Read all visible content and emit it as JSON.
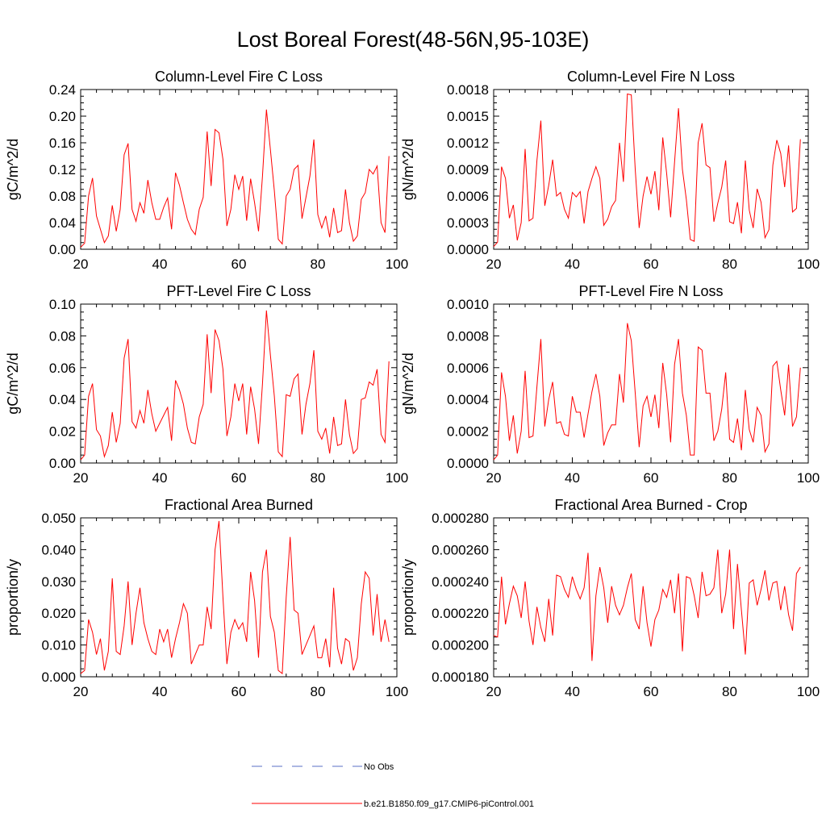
{
  "title": "Lost Boreal Forest(48-56N,95-103E)",
  "legend": {
    "items": [
      {
        "label": "No Obs",
        "style": "dashed",
        "color": "#5a6fc4"
      },
      {
        "label": "b.e21.B1850.f09_g17.CMIP6-piControl.001",
        "style": "solid",
        "color": "#ff0000"
      }
    ]
  },
  "chart_data": [
    {
      "type": "line",
      "title": "Column-Level Fire C Loss",
      "xlabel": "",
      "ylabel": "gC/m^2/d",
      "xlim": [
        20,
        100
      ],
      "ylim": [
        0,
        0.24
      ],
      "xticks": [
        "20",
        "40",
        "60",
        "80",
        "100"
      ],
      "yticks": [
        "0.00",
        "0.04",
        "0.08",
        "0.12",
        "0.16",
        "0.20",
        "0.24"
      ],
      "x_start": 20,
      "series": [
        {
          "name": "b.e21.B1850.f09_g17.CMIP6-piControl.001",
          "color": "#ff0000",
          "values": [
            0.003,
            0.009,
            0.08,
            0.107,
            0.05,
            0.03,
            0.01,
            0.02,
            0.066,
            0.027,
            0.06,
            0.142,
            0.159,
            0.06,
            0.042,
            0.07,
            0.054,
            0.104,
            0.07,
            0.045,
            0.045,
            0.063,
            0.077,
            0.03,
            0.115,
            0.096,
            0.07,
            0.045,
            0.03,
            0.022,
            0.06,
            0.078,
            0.177,
            0.095,
            0.18,
            0.175,
            0.135,
            0.035,
            0.06,
            0.112,
            0.09,
            0.11,
            0.043,
            0.106,
            0.07,
            0.027,
            0.11,
            0.21,
            0.15,
            0.088,
            0.015,
            0.008,
            0.08,
            0.09,
            0.12,
            0.126,
            0.046,
            0.078,
            0.11,
            0.165,
            0.052,
            0.032,
            0.05,
            0.018,
            0.062,
            0.025,
            0.028,
            0.09,
            0.04,
            0.012,
            0.02,
            0.075,
            0.085,
            0.12,
            0.113,
            0.125,
            0.04,
            0.025,
            0.14
          ]
        }
      ]
    },
    {
      "type": "line",
      "title": "Column-Level Fire N Loss",
      "xlabel": "",
      "ylabel": "gN/m^2/d",
      "xlim": [
        20,
        100
      ],
      "ylim": [
        0,
        0.0018
      ],
      "xticks": [
        "20",
        "40",
        "60",
        "80",
        "100"
      ],
      "yticks": [
        "0.0000",
        "0.0003",
        "0.0006",
        "0.0009",
        "0.0012",
        "0.0015",
        "0.0018"
      ],
      "x_start": 20,
      "series": [
        {
          "name": "b.e21.B1850.f09_g17.CMIP6-piControl.001",
          "color": "#ff0000",
          "values": [
            3e-05,
            8e-05,
            0.00093,
            0.0008,
            0.00035,
            0.0005,
            0.0001,
            0.0003,
            0.00113,
            0.00032,
            0.00035,
            0.001,
            0.00145,
            0.00049,
            0.00072,
            0.00101,
            0.0006,
            0.00064,
            0.00045,
            0.00035,
            0.00064,
            0.00059,
            0.00065,
            0.00029,
            0.00065,
            0.0008,
            0.00093,
            0.0008,
            0.00027,
            0.00034,
            0.00048,
            0.00055,
            0.0012,
            0.00076,
            0.00175,
            0.00174,
            0.0009,
            0.00024,
            0.0006,
            0.00082,
            0.00062,
            0.00088,
            0.00044,
            0.00126,
            0.00085,
            0.00036,
            0.00098,
            0.00159,
            0.0009,
            0.00056,
            0.00011,
            9e-05,
            0.0012,
            0.00142,
            0.00095,
            0.00092,
            0.00031,
            0.00052,
            0.0007,
            0.001,
            0.00031,
            0.00029,
            0.00053,
            0.00018,
            0.001,
            0.00044,
            0.00024,
            0.00068,
            0.00053,
            0.00013,
            0.00022,
            0.00095,
            0.00123,
            0.00108,
            0.0007,
            0.00117,
            0.00042,
            0.00046,
            0.00124
          ]
        }
      ]
    },
    {
      "type": "line",
      "title": "PFT-Level Fire C Loss",
      "xlabel": "",
      "ylabel": "gC/m^2/d",
      "xlim": [
        20,
        100
      ],
      "ylim": [
        0,
        0.1
      ],
      "xticks": [
        "20",
        "40",
        "60",
        "80",
        "100"
      ],
      "yticks": [
        "0.00",
        "0.02",
        "0.04",
        "0.06",
        "0.08",
        "0.10"
      ],
      "x_start": 20,
      "series": [
        {
          "name": "b.e21.B1850.f09_g17.CMIP6-piControl.001",
          "color": "#ff0000",
          "values": [
            0.002,
            0.005,
            0.042,
            0.05,
            0.021,
            0.017,
            0.004,
            0.011,
            0.032,
            0.013,
            0.025,
            0.066,
            0.078,
            0.026,
            0.022,
            0.033,
            0.025,
            0.046,
            0.031,
            0.02,
            0.025,
            0.03,
            0.035,
            0.014,
            0.052,
            0.046,
            0.037,
            0.022,
            0.013,
            0.012,
            0.029,
            0.037,
            0.081,
            0.044,
            0.084,
            0.077,
            0.059,
            0.017,
            0.029,
            0.05,
            0.039,
            0.05,
            0.018,
            0.048,
            0.034,
            0.012,
            0.05,
            0.096,
            0.068,
            0.042,
            0.007,
            0.004,
            0.043,
            0.042,
            0.053,
            0.056,
            0.018,
            0.037,
            0.05,
            0.071,
            0.02,
            0.015,
            0.022,
            0.006,
            0.029,
            0.011,
            0.012,
            0.04,
            0.018,
            0.006,
            0.009,
            0.04,
            0.041,
            0.051,
            0.049,
            0.059,
            0.018,
            0.013,
            0.064
          ]
        }
      ]
    },
    {
      "type": "line",
      "title": "PFT-Level Fire N Loss",
      "xlabel": "",
      "ylabel": "gN/m^2/d",
      "xlim": [
        20,
        100
      ],
      "ylim": [
        0,
        0.001
      ],
      "xticks": [
        "20",
        "40",
        "60",
        "80",
        "100"
      ],
      "yticks": [
        "0.0000",
        "0.0002",
        "0.0004",
        "0.0006",
        "0.0008",
        "0.0010"
      ],
      "x_start": 20,
      "series": [
        {
          "name": "b.e21.B1850.f09_g17.CMIP6-piControl.001",
          "color": "#ff0000",
          "values": [
            2e-05,
            5e-05,
            0.00057,
            0.00042,
            0.00014,
            0.0003,
            6e-05,
            0.0002,
            0.00058,
            0.00016,
            0.00017,
            0.00048,
            0.00078,
            0.00023,
            0.0004,
            0.00051,
            0.00025,
            0.00026,
            0.00018,
            0.00017,
            0.00042,
            0.00032,
            0.00032,
            0.00016,
            0.00031,
            0.00045,
            0.00056,
            0.00042,
            0.00011,
            0.00019,
            0.00024,
            0.00024,
            0.00056,
            0.00038,
            0.00088,
            0.00077,
            0.00044,
            0.0001,
            0.00036,
            0.00042,
            0.00029,
            0.00043,
            0.00022,
            0.00063,
            0.00043,
            0.00013,
            0.00062,
            0.00078,
            0.00044,
            0.0003,
            5e-05,
            5e-05,
            0.00073,
            0.00071,
            0.00044,
            0.00044,
            0.00014,
            0.0002,
            0.00034,
            0.00057,
            0.00015,
            0.00013,
            0.00028,
            8e-05,
            0.00046,
            0.00021,
            0.00013,
            0.00035,
            0.0003,
            7e-05,
            0.00012,
            0.00061,
            0.00064,
            0.00046,
            0.0003,
            0.00062,
            0.00023,
            0.00029,
            0.0006
          ]
        }
      ]
    },
    {
      "type": "line",
      "title": "Fractional Area Burned",
      "xlabel": "",
      "ylabel": "proportion/y",
      "xlim": [
        20,
        100
      ],
      "ylim": [
        0,
        0.05
      ],
      "xticks": [
        "20",
        "40",
        "60",
        "80",
        "100"
      ],
      "yticks": [
        "0.000",
        "0.010",
        "0.020",
        "0.030",
        "0.040",
        "0.050"
      ],
      "x_start": 20,
      "series": [
        {
          "name": "b.e21.B1850.f09_g17.CMIP6-piControl.001",
          "color": "#ff0000",
          "values": [
            0.001,
            0.002,
            0.018,
            0.014,
            0.007,
            0.012,
            0.002,
            0.008,
            0.031,
            0.008,
            0.007,
            0.016,
            0.03,
            0.01,
            0.02,
            0.028,
            0.017,
            0.012,
            0.008,
            0.007,
            0.015,
            0.011,
            0.015,
            0.006,
            0.012,
            0.017,
            0.023,
            0.02,
            0.004,
            0.007,
            0.01,
            0.01,
            0.022,
            0.015,
            0.04,
            0.049,
            0.025,
            0.004,
            0.014,
            0.018,
            0.015,
            0.017,
            0.011,
            0.033,
            0.024,
            0.006,
            0.033,
            0.04,
            0.019,
            0.014,
            0.002,
            0.001,
            0.025,
            0.044,
            0.021,
            0.02,
            0.007,
            0.01,
            0.013,
            0.016,
            0.006,
            0.006,
            0.012,
            0.003,
            0.028,
            0.009,
            0.004,
            0.012,
            0.011,
            0.002,
            0.006,
            0.023,
            0.033,
            0.031,
            0.013,
            0.026,
            0.011,
            0.018,
            0.011
          ]
        }
      ]
    },
    {
      "type": "line",
      "title": "Fractional Area Burned - Crop",
      "xlabel": "",
      "ylabel": "proportion/y",
      "xlim": [
        20,
        100
      ],
      "ylim": [
        0.00018,
        0.00028
      ],
      "xticks": [
        "20",
        "40",
        "60",
        "80",
        "100"
      ],
      "yticks": [
        "0.000180",
        "0.000200",
        "0.000220",
        "0.000240",
        "0.000260",
        "0.000280"
      ],
      "x_start": 20,
      "series": [
        {
          "name": "b.e21.B1850.f09_g17.CMIP6-piControl.001",
          "color": "#ff0000",
          "values": [
            0.000206,
            0.000205,
            0.000243,
            0.000213,
            0.000226,
            0.000237,
            0.000231,
            0.000217,
            0.00024,
            0.000215,
            0.0002,
            0.000224,
            0.000211,
            0.000202,
            0.000229,
            0.000206,
            0.000244,
            0.000243,
            0.000235,
            0.00023,
            0.000243,
            0.000235,
            0.000229,
            0.000236,
            0.000258,
            0.00019,
            0.000231,
            0.000249,
            0.000236,
            0.000214,
            0.000237,
            0.000225,
            0.000219,
            0.000225,
            0.000236,
            0.000245,
            0.000216,
            0.00021,
            0.000237,
            0.000214,
            0.000199,
            0.000216,
            0.000222,
            0.000235,
            0.00023,
            0.000241,
            0.00022,
            0.000245,
            0.000196,
            0.000243,
            0.000242,
            0.000231,
            0.000217,
            0.000246,
            0.000231,
            0.000232,
            0.000236,
            0.00026,
            0.00022,
            0.000232,
            0.00026,
            0.00021,
            0.000251,
            0.000222,
            0.000194,
            0.000239,
            0.000241,
            0.000225,
            0.000235,
            0.000247,
            0.000228,
            0.000239,
            0.00024,
            0.000222,
            0.000237,
            0.000219,
            0.000209,
            0.000245,
            0.000249
          ]
        }
      ]
    }
  ]
}
